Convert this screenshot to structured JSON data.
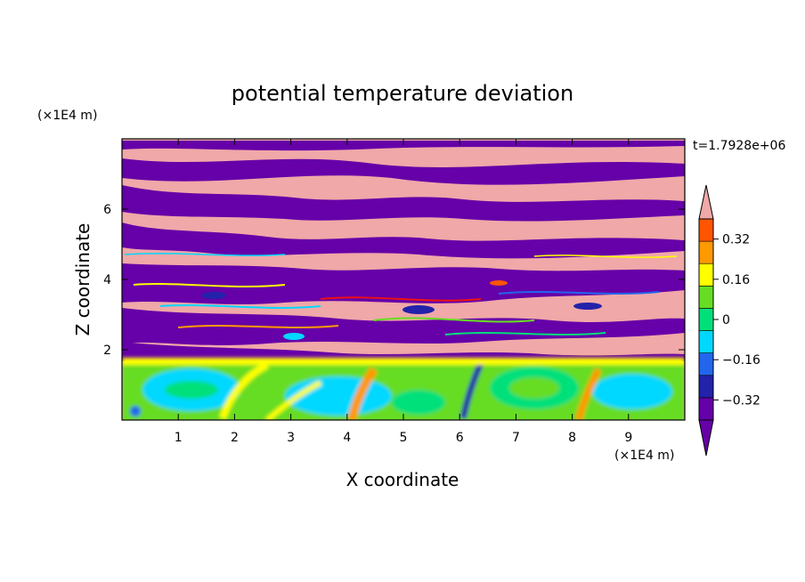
{
  "chart_data": {
    "type": "heatmap",
    "title": "potential temperature deviation",
    "xlabel": "X coordinate",
    "ylabel": "Z coordinate",
    "x_unit": "(×1E4 m)",
    "y_unit": "(×1E4 m)",
    "time_label": "t=1.7928e+06",
    "xlim": [
      0,
      10
    ],
    "ylim": [
      0,
      8
    ],
    "x_ticks": [
      "1",
      "2",
      "3",
      "4",
      "5",
      "6",
      "7",
      "8",
      "9"
    ],
    "y_ticks": [
      "2",
      "4",
      "6"
    ],
    "colorbar": {
      "levels": [
        -0.4,
        -0.32,
        -0.24,
        -0.16,
        -0.08,
        0,
        0.08,
        0.16,
        0.24,
        0.32,
        0.4
      ],
      "labels": [
        "0.32",
        "0.16",
        "0",
        "−0.16",
        "−0.32"
      ],
      "label_values": [
        0.32,
        0.16,
        0,
        -0.16,
        -0.32
      ],
      "colors": [
        "#6600a8",
        "#2222aa",
        "#2266ee",
        "#00d8ff",
        "#00e07a",
        "#66dd22",
        "#ffff00",
        "#ff9900",
        "#ff5500",
        "#ee1111",
        "#f0a8a8"
      ],
      "extend": "both"
    }
  }
}
